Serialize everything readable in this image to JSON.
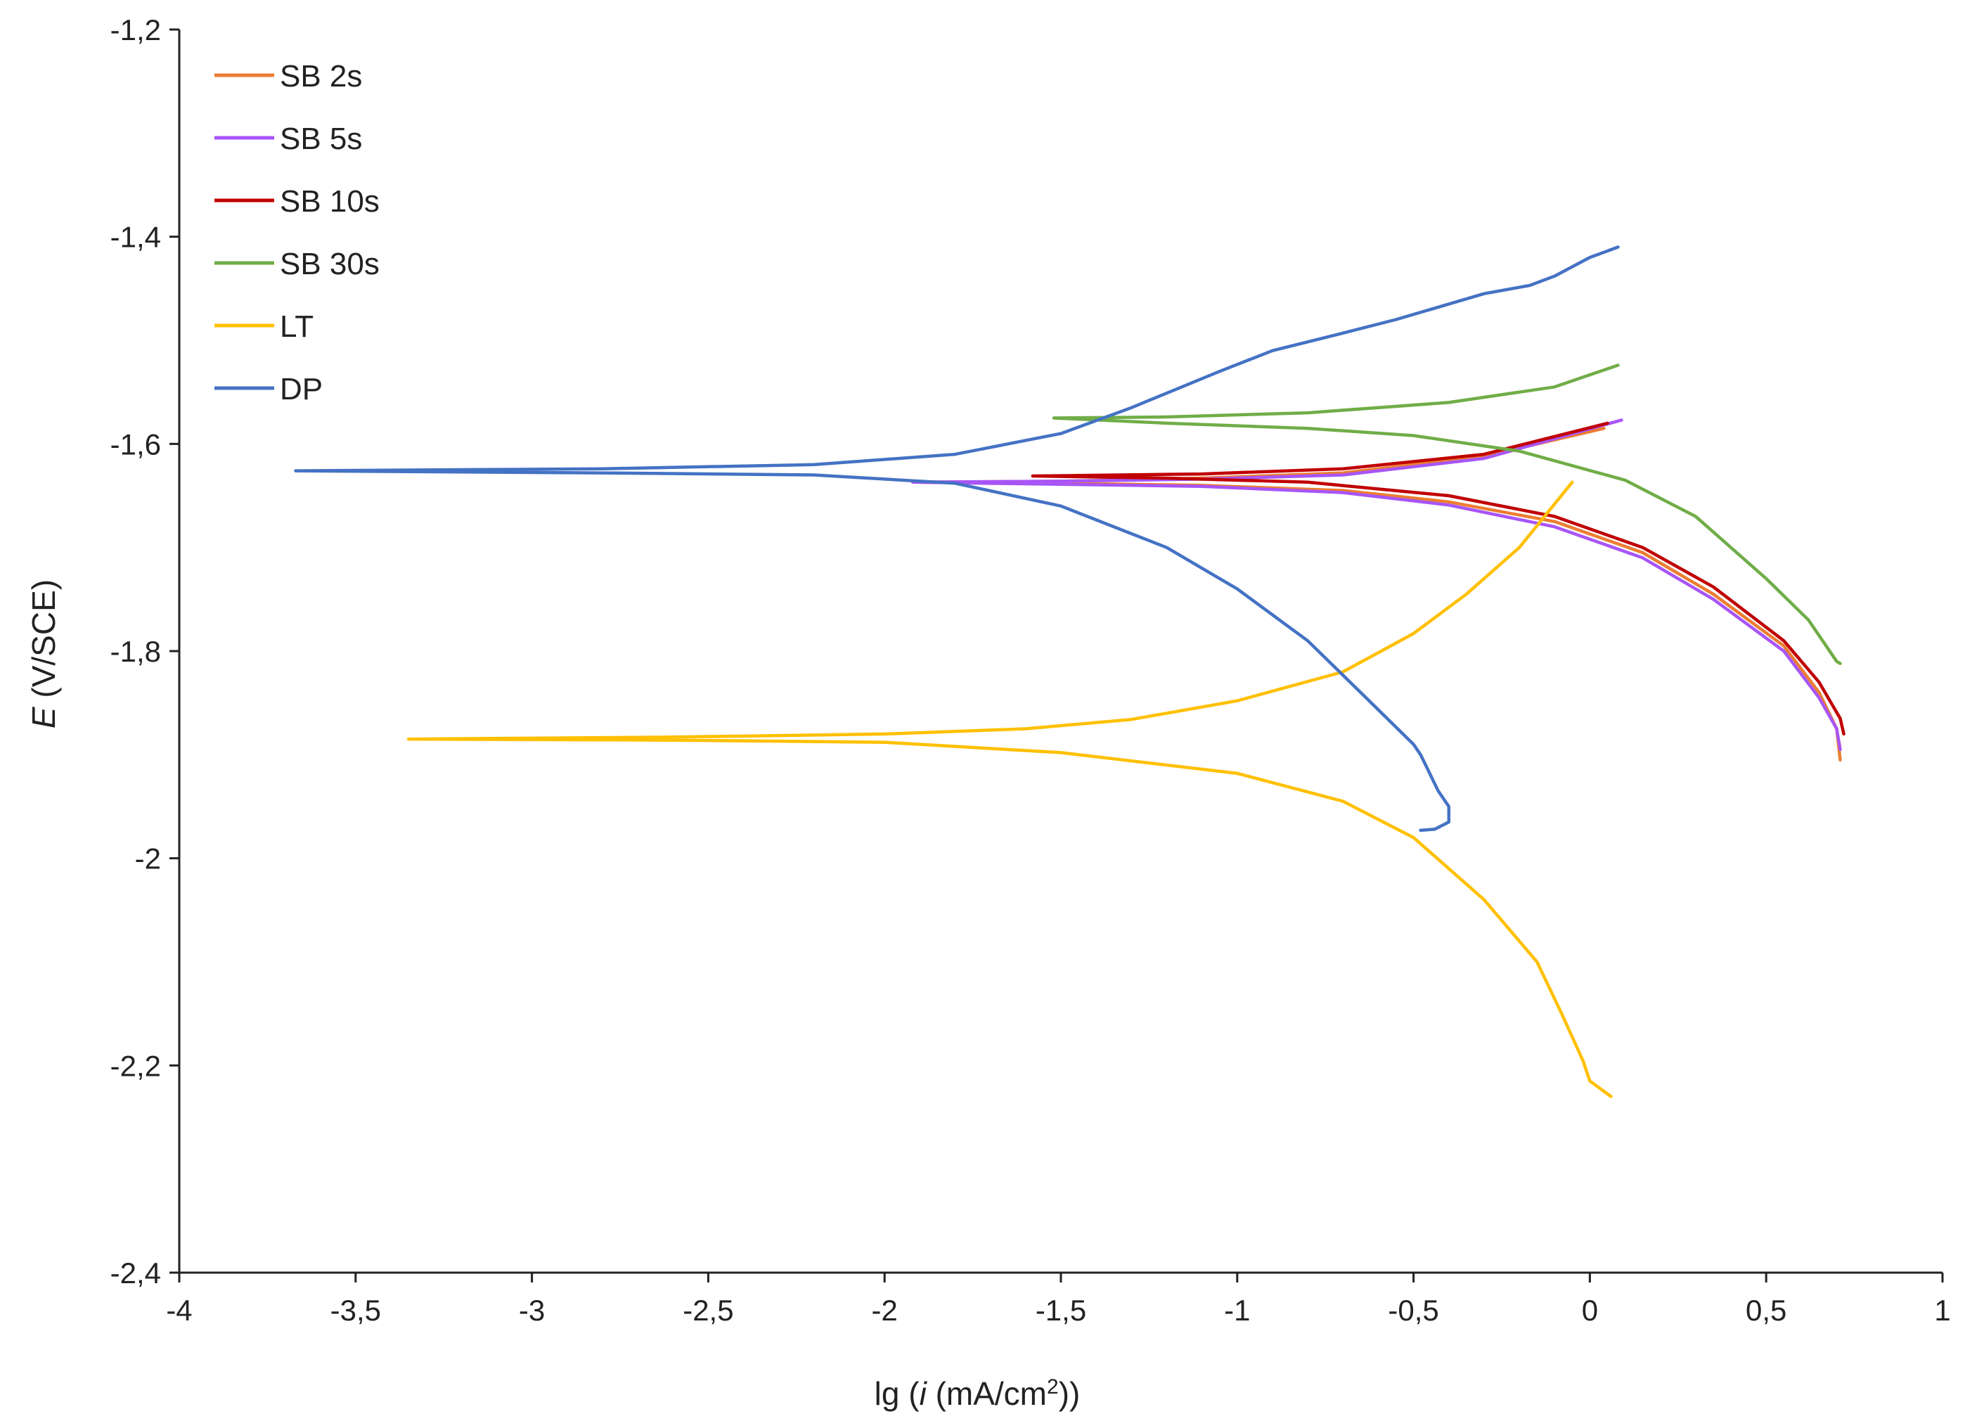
{
  "chart_data": {
    "type": "line",
    "xlabel_parts": [
      "lg (",
      "i",
      " (mA/cm",
      "2",
      "))"
    ],
    "ylabel_parts": [
      "E",
      " (V/SCE)"
    ],
    "xlim": [
      -4,
      1
    ],
    "ylim": [
      -2.4,
      -1.2
    ],
    "x_ticks": [
      {
        "value": -4,
        "label": "-4"
      },
      {
        "value": -3.5,
        "label": "-3,5"
      },
      {
        "value": -3,
        "label": "-3"
      },
      {
        "value": -2.5,
        "label": "-2,5"
      },
      {
        "value": -2,
        "label": "-2"
      },
      {
        "value": -1.5,
        "label": "-1,5"
      },
      {
        "value": -1,
        "label": "-1"
      },
      {
        "value": -0.5,
        "label": "-0,5"
      },
      {
        "value": 0,
        "label": "0"
      },
      {
        "value": 0.5,
        "label": "0,5"
      },
      {
        "value": 1,
        "label": "1"
      }
    ],
    "y_ticks": [
      {
        "value": -1.2,
        "label": "-1,2"
      },
      {
        "value": -1.4,
        "label": "-1,4"
      },
      {
        "value": -1.6,
        "label": "-1,6"
      },
      {
        "value": -1.8,
        "label": "-1,8"
      },
      {
        "value": -2.0,
        "label": "-2"
      },
      {
        "value": -2.2,
        "label": "-2,2"
      },
      {
        "value": -2.4,
        "label": "-2,4"
      }
    ],
    "grid": false,
    "legend_position": "top-left",
    "series": [
      {
        "name": "SB 2s",
        "color": "#ed7d31",
        "points": [
          [
            0.04,
            -1.585
          ],
          [
            -0.3,
            -1.612
          ],
          [
            -0.7,
            -1.628
          ],
          [
            -1.1,
            -1.633
          ],
          [
            -1.5,
            -1.636
          ],
          [
            -1.9,
            -1.637
          ],
          [
            -1.5,
            -1.638
          ],
          [
            -1.1,
            -1.64
          ],
          [
            -0.7,
            -1.645
          ],
          [
            -0.4,
            -1.656
          ],
          [
            -0.1,
            -1.675
          ],
          [
            0.15,
            -1.705
          ],
          [
            0.35,
            -1.745
          ],
          [
            0.55,
            -1.795
          ],
          [
            0.65,
            -1.84
          ],
          [
            0.7,
            -1.875
          ],
          [
            0.71,
            -1.905
          ]
        ]
      },
      {
        "name": "SB 5s",
        "color": "#a855f7",
        "points": [
          [
            0.09,
            -1.577
          ],
          [
            -0.3,
            -1.614
          ],
          [
            -0.7,
            -1.63
          ],
          [
            -1.1,
            -1.634
          ],
          [
            -1.5,
            -1.636
          ],
          [
            -1.92,
            -1.637
          ],
          [
            -1.5,
            -1.639
          ],
          [
            -1.1,
            -1.641
          ],
          [
            -0.7,
            -1.647
          ],
          [
            -0.4,
            -1.659
          ],
          [
            -0.1,
            -1.68
          ],
          [
            0.15,
            -1.71
          ],
          [
            0.35,
            -1.75
          ],
          [
            0.55,
            -1.8
          ],
          [
            0.65,
            -1.845
          ],
          [
            0.7,
            -1.875
          ],
          [
            0.71,
            -1.895
          ]
        ]
      },
      {
        "name": "SB 10s",
        "color": "#c00000",
        "points": [
          [
            0.05,
            -1.58
          ],
          [
            -0.3,
            -1.61
          ],
          [
            -0.7,
            -1.624
          ],
          [
            -1.1,
            -1.629
          ],
          [
            -1.58,
            -1.631
          ],
          [
            -1.2,
            -1.633
          ],
          [
            -0.8,
            -1.637
          ],
          [
            -0.4,
            -1.65
          ],
          [
            -0.1,
            -1.67
          ],
          [
            0.15,
            -1.7
          ],
          [
            0.35,
            -1.738
          ],
          [
            0.55,
            -1.79
          ],
          [
            0.65,
            -1.83
          ],
          [
            0.71,
            -1.865
          ],
          [
            0.72,
            -1.88
          ]
        ]
      },
      {
        "name": "SB 30s",
        "color": "#70ad47",
        "points": [
          [
            0.08,
            -1.524
          ],
          [
            -0.1,
            -1.545
          ],
          [
            -0.4,
            -1.56
          ],
          [
            -0.8,
            -1.57
          ],
          [
            -1.2,
            -1.574
          ],
          [
            -1.52,
            -1.575
          ],
          [
            -1.2,
            -1.58
          ],
          [
            -0.8,
            -1.585
          ],
          [
            -0.5,
            -1.592
          ],
          [
            -0.2,
            -1.607
          ],
          [
            0.1,
            -1.635
          ],
          [
            0.3,
            -1.67
          ],
          [
            0.5,
            -1.73
          ],
          [
            0.62,
            -1.77
          ],
          [
            0.7,
            -1.81
          ],
          [
            0.71,
            -1.812
          ]
        ]
      },
      {
        "name": "LT",
        "color": "#ffc000",
        "points": [
          [
            -0.05,
            -1.637
          ],
          [
            -0.2,
            -1.7
          ],
          [
            -0.35,
            -1.745
          ],
          [
            -0.5,
            -1.783
          ],
          [
            -0.7,
            -1.82
          ],
          [
            -1.0,
            -1.848
          ],
          [
            -1.3,
            -1.866
          ],
          [
            -1.6,
            -1.875
          ],
          [
            -2.0,
            -1.88
          ],
          [
            -2.6,
            -1.883
          ],
          [
            -3.35,
            -1.885
          ],
          [
            -2.6,
            -1.886
          ],
          [
            -2.0,
            -1.888
          ],
          [
            -1.5,
            -1.898
          ],
          [
            -1.0,
            -1.918
          ],
          [
            -0.7,
            -1.945
          ],
          [
            -0.5,
            -1.98
          ],
          [
            -0.3,
            -2.04
          ],
          [
            -0.15,
            -2.1
          ],
          [
            -0.08,
            -2.15
          ],
          [
            -0.02,
            -2.195
          ],
          [
            0.0,
            -2.215
          ],
          [
            0.06,
            -2.23
          ]
        ]
      },
      {
        "name": "DP",
        "color": "#4472c4",
        "points": [
          [
            0.08,
            -1.41
          ],
          [
            0.0,
            -1.42
          ],
          [
            -0.1,
            -1.438
          ],
          [
            -0.17,
            -1.447
          ],
          [
            -0.3,
            -1.455
          ],
          [
            -0.45,
            -1.47
          ],
          [
            -0.55,
            -1.48
          ],
          [
            -0.7,
            -1.493
          ],
          [
            -0.9,
            -1.51
          ],
          [
            -1.05,
            -1.53
          ],
          [
            -1.3,
            -1.565
          ],
          [
            -1.5,
            -1.59
          ],
          [
            -1.8,
            -1.61
          ],
          [
            -2.2,
            -1.62
          ],
          [
            -2.8,
            -1.624
          ],
          [
            -3.67,
            -1.626
          ],
          [
            -2.8,
            -1.628
          ],
          [
            -2.2,
            -1.63
          ],
          [
            -1.8,
            -1.638
          ],
          [
            -1.5,
            -1.66
          ],
          [
            -1.2,
            -1.7
          ],
          [
            -1.0,
            -1.74
          ],
          [
            -0.8,
            -1.79
          ],
          [
            -0.65,
            -1.84
          ],
          [
            -0.5,
            -1.89
          ],
          [
            -0.48,
            -1.9
          ],
          [
            -0.43,
            -1.935
          ],
          [
            -0.4,
            -1.95
          ],
          [
            -0.4,
            -1.965
          ],
          [
            -0.44,
            -1.972
          ],
          [
            -0.48,
            -1.973
          ]
        ]
      }
    ]
  }
}
